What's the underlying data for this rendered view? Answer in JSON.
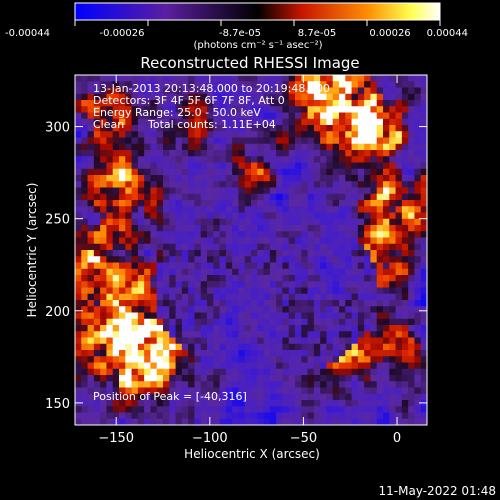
{
  "chart_data": {
    "type": "heatmap",
    "title": "Reconstructed RHESSI Image",
    "xlabel": "Heliocentric X (arcsec)",
    "ylabel": "Heliocentric Y (arcsec)",
    "xlim": [
      -172,
      16
    ],
    "ylim": [
      138,
      328
    ],
    "x_ticks": [
      -150,
      -100,
      -50,
      0
    ],
    "y_ticks": [
      150,
      200,
      250,
      300
    ],
    "colorbar": {
      "ticks": [
        "-0.00044",
        "-0.00026",
        "-8.7e-05",
        "8.7e-05",
        "0.00026",
        "0.00044"
      ],
      "units": "(photons cm⁻² s⁻¹ asec⁻²)",
      "range": [
        -0.00044,
        0.00044
      ],
      "colormap": [
        "#0000ff",
        "#5a1ea0",
        "#000000",
        "#c81400",
        "#ff8c00",
        "#ffff50",
        "#ffffff"
      ]
    },
    "annotations": {
      "line1": "13-Jan-2013 20:13:48.000 to 20:19:48.000",
      "line2": "Detectors: 3F 4F 5F 6F 7F 8F, Att 0",
      "line3": "Energy Range: 25.0 - 50.0 keV",
      "line4_a": "Clean",
      "line4_b": "Total counts: 1.11E+04",
      "peak": "Position of Peak = [-40,316]"
    },
    "grid": false
  },
  "timestamp": "11-May-2022 01:48"
}
